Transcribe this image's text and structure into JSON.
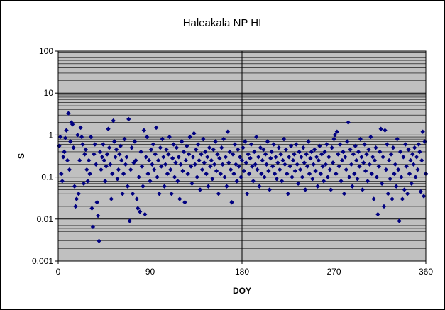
{
  "chart_data": {
    "type": "scatter",
    "title": "Haleakala NP HI",
    "xlabel": "DOY",
    "ylabel": "S",
    "xlim": [
      0,
      360
    ],
    "ylim": [
      0.001,
      100
    ],
    "y_scale": "log",
    "x_ticks": [
      "0",
      "90",
      "180",
      "270",
      "360"
    ],
    "y_ticks": [
      "0.001",
      "0.01",
      "0.1",
      "1",
      "10",
      "100"
    ],
    "grid": true,
    "legend": "none",
    "colors": {
      "marker": "#000080",
      "plot_bg": "#c0c0c0",
      "grid": "#000000"
    },
    "points": [
      [
        1,
        0.55
      ],
      [
        2,
        0.9
      ],
      [
        3,
        0.12
      ],
      [
        4,
        0.08
      ],
      [
        5,
        0.3
      ],
      [
        6,
        0.4
      ],
      [
        7,
        0.85
      ],
      [
        8,
        1.3
      ],
      [
        9,
        0.25
      ],
      [
        10,
        3.3
      ],
      [
        11,
        0.15
      ],
      [
        12,
        0.7
      ],
      [
        13,
        2.0
      ],
      [
        14,
        1.8
      ],
      [
        15,
        0.5
      ],
      [
        16,
        0.06
      ],
      [
        17,
        0.02
      ],
      [
        18,
        0.03
      ],
      [
        19,
        1.0
      ],
      [
        20,
        0.04
      ],
      [
        21,
        0.25
      ],
      [
        22,
        1.5
      ],
      [
        23,
        0.9
      ],
      [
        24,
        0.6
      ],
      [
        25,
        0.07
      ],
      [
        26,
        0.35
      ],
      [
        27,
        0.45
      ],
      [
        28,
        0.15
      ],
      [
        29,
        0.08
      ],
      [
        30,
        0.25
      ],
      [
        31,
        0.12
      ],
      [
        32,
        0.9
      ],
      [
        33,
        0.018
      ],
      [
        34,
        0.0065
      ],
      [
        35,
        0.35
      ],
      [
        36,
        0.6
      ],
      [
        37,
        0.2
      ],
      [
        38,
        0.025
      ],
      [
        39,
        0.012
      ],
      [
        40,
        0.003
      ],
      [
        41,
        0.4
      ],
      [
        42,
        0.15
      ],
      [
        43,
        0.3
      ],
      [
        44,
        0.6
      ],
      [
        45,
        0.25
      ],
      [
        46,
        0.08
      ],
      [
        47,
        0.18
      ],
      [
        48,
        0.35
      ],
      [
        49,
        1.4
      ],
      [
        50,
        0.5
      ],
      [
        51,
        0.2
      ],
      [
        52,
        0.03
      ],
      [
        53,
        0.12
      ],
      [
        54,
        2.2
      ],
      [
        55,
        0.7
      ],
      [
        56,
        0.3
      ],
      [
        57,
        0.45
      ],
      [
        58,
        0.09
      ],
      [
        59,
        0.15
      ],
      [
        60,
        0.35
      ],
      [
        61,
        0.55
      ],
      [
        62,
        0.25
      ],
      [
        63,
        0.04
      ],
      [
        64,
        0.12
      ],
      [
        65,
        0.8
      ],
      [
        66,
        0.2
      ],
      [
        67,
        0.3
      ],
      [
        68,
        0.06
      ],
      [
        69,
        2.4
      ],
      [
        70,
        0.009
      ],
      [
        71,
        0.15
      ],
      [
        72,
        0.5
      ],
      [
        73,
        0.04
      ],
      [
        74,
        0.22
      ],
      [
        75,
        0.7
      ],
      [
        76,
        0.25
      ],
      [
        77,
        0.03
      ],
      [
        78,
        0.018
      ],
      [
        79,
        0.1
      ],
      [
        80,
        0.015
      ],
      [
        81,
        0.4
      ],
      [
        82,
        0.18
      ],
      [
        83,
        0.06
      ],
      [
        84,
        1.3
      ],
      [
        85,
        0.013
      ],
      [
        86,
        0.3
      ],
      [
        87,
        0.9
      ],
      [
        88,
        0.12
      ],
      [
        89,
        0.25
      ],
      [
        90,
        0.08
      ],
      [
        91,
        0.45
      ],
      [
        92,
        0.2
      ],
      [
        93,
        0.6
      ],
      [
        94,
        0.15
      ],
      [
        95,
        0.35
      ],
      [
        96,
        1.5
      ],
      [
        97,
        0.1
      ],
      [
        98,
        0.25
      ],
      [
        99,
        0.04
      ],
      [
        100,
        0.5
      ],
      [
        101,
        0.18
      ],
      [
        102,
        0.8
      ],
      [
        103,
        0.3
      ],
      [
        104,
        0.06
      ],
      [
        105,
        0.2
      ],
      [
        106,
        0.45
      ],
      [
        107,
        0.12
      ],
      [
        108,
        0.35
      ],
      [
        109,
        0.9
      ],
      [
        110,
        0.15
      ],
      [
        111,
        0.04
      ],
      [
        112,
        0.28
      ],
      [
        113,
        0.6
      ],
      [
        114,
        0.1
      ],
      [
        115,
        0.22
      ],
      [
        116,
        0.5
      ],
      [
        117,
        0.08
      ],
      [
        118,
        0.3
      ],
      [
        119,
        0.03
      ],
      [
        120,
        0.2
      ],
      [
        121,
        0.7
      ],
      [
        122,
        0.14
      ],
      [
        123,
        0.4
      ],
      [
        124,
        0.025
      ],
      [
        125,
        0.25
      ],
      [
        126,
        0.55
      ],
      [
        127,
        0.12
      ],
      [
        128,
        0.35
      ],
      [
        129,
        0.9
      ],
      [
        130,
        0.18
      ],
      [
        131,
        0.07
      ],
      [
        132,
        0.3
      ],
      [
        133,
        1.1
      ],
      [
        134,
        0.2
      ],
      [
        135,
        0.45
      ],
      [
        136,
        0.1
      ],
      [
        137,
        0.6
      ],
      [
        138,
        0.25
      ],
      [
        139,
        0.05
      ],
      [
        140,
        0.35
      ],
      [
        141,
        0.15
      ],
      [
        142,
        0.8
      ],
      [
        143,
        0.22
      ],
      [
        144,
        0.4
      ],
      [
        145,
        0.12
      ],
      [
        146,
        0.3
      ],
      [
        147,
        0.06
      ],
      [
        148,
        0.5
      ],
      [
        149,
        0.18
      ],
      [
        150,
        0.25
      ],
      [
        151,
        0.09
      ],
      [
        152,
        0.45
      ],
      [
        153,
        0.2
      ],
      [
        154,
        0.7
      ],
      [
        155,
        0.14
      ],
      [
        156,
        0.35
      ],
      [
        157,
        0.04
      ],
      [
        158,
        0.28
      ],
      [
        159,
        0.12
      ],
      [
        160,
        0.5
      ],
      [
        161,
        0.2
      ],
      [
        162,
        0.8
      ],
      [
        163,
        0.1
      ],
      [
        164,
        0.3
      ],
      [
        165,
        0.06
      ],
      [
        166,
        1.2
      ],
      [
        167,
        0.22
      ],
      [
        168,
        0.4
      ],
      [
        169,
        0.15
      ],
      [
        170,
        0.025
      ],
      [
        171,
        0.35
      ],
      [
        172,
        0.12
      ],
      [
        173,
        0.6
      ],
      [
        174,
        0.2
      ],
      [
        175,
        0.08
      ],
      [
        176,
        0.45
      ],
      [
        177,
        0.18
      ],
      [
        178,
        0.3
      ],
      [
        179,
        0.1
      ],
      [
        180,
        0.25
      ],
      [
        181,
        0.5
      ],
      [
        182,
        0.14
      ],
      [
        183,
        0.7
      ],
      [
        184,
        0.22
      ],
      [
        185,
        0.04
      ],
      [
        186,
        0.35
      ],
      [
        187,
        0.12
      ],
      [
        188,
        0.28
      ],
      [
        189,
        0.6
      ],
      [
        190,
        0.18
      ],
      [
        191,
        0.08
      ],
      [
        192,
        0.4
      ],
      [
        193,
        0.2
      ],
      [
        194,
        0.9
      ],
      [
        195,
        0.15
      ],
      [
        196,
        0.3
      ],
      [
        197,
        0.06
      ],
      [
        198,
        0.5
      ],
      [
        199,
        0.12
      ],
      [
        200,
        0.25
      ],
      [
        201,
        0.45
      ],
      [
        202,
        0.1
      ],
      [
        203,
        0.35
      ],
      [
        204,
        0.2
      ],
      [
        205,
        0.7
      ],
      [
        206,
        0.14
      ],
      [
        207,
        0.05
      ],
      [
        208,
        0.28
      ],
      [
        209,
        0.4
      ],
      [
        210,
        0.18
      ],
      [
        211,
        0.6
      ],
      [
        212,
        0.12
      ],
      [
        213,
        0.3
      ],
      [
        214,
        0.09
      ],
      [
        215,
        0.22
      ],
      [
        216,
        0.5
      ],
      [
        217,
        0.15
      ],
      [
        218,
        0.35
      ],
      [
        219,
        0.08
      ],
      [
        220,
        0.25
      ],
      [
        221,
        0.8
      ],
      [
        222,
        0.2
      ],
      [
        223,
        0.45
      ],
      [
        224,
        0.12
      ],
      [
        225,
        0.04
      ],
      [
        226,
        0.3
      ],
      [
        227,
        0.18
      ],
      [
        228,
        0.55
      ],
      [
        229,
        0.1
      ],
      [
        230,
        0.25
      ],
      [
        231,
        0.35
      ],
      [
        232,
        0.14
      ],
      [
        233,
        0.6
      ],
      [
        234,
        0.2
      ],
      [
        235,
        0.07
      ],
      [
        236,
        0.4
      ],
      [
        237,
        0.15
      ],
      [
        238,
        0.3
      ],
      [
        239,
        0.1
      ],
      [
        240,
        0.5
      ],
      [
        241,
        0.22
      ],
      [
        242,
        0.05
      ],
      [
        243,
        0.35
      ],
      [
        244,
        0.18
      ],
      [
        245,
        0.7
      ],
      [
        246,
        0.12
      ],
      [
        247,
        0.28
      ],
      [
        248,
        0.4
      ],
      [
        249,
        0.09
      ],
      [
        250,
        0.2
      ],
      [
        251,
        0.45
      ],
      [
        252,
        0.14
      ],
      [
        253,
        0.3
      ],
      [
        254,
        0.06
      ],
      [
        255,
        0.25
      ],
      [
        256,
        0.55
      ],
      [
        257,
        0.12
      ],
      [
        258,
        0.35
      ],
      [
        259,
        0.18
      ],
      [
        260,
        0.08
      ],
      [
        261,
        0.4
      ],
      [
        262,
        0.2
      ],
      [
        263,
        0.6
      ],
      [
        264,
        0.1
      ],
      [
        265,
        0.3
      ],
      [
        266,
        0.15
      ],
      [
        267,
        0.05
      ],
      [
        268,
        0.5
      ],
      [
        269,
        0.22
      ],
      [
        270,
        0.8
      ],
      [
        271,
        1.0
      ],
      [
        272,
        0.12
      ],
      [
        273,
        1.2
      ],
      [
        274,
        0.35
      ],
      [
        275,
        0.18
      ],
      [
        276,
        0.6
      ],
      [
        277,
        0.08
      ],
      [
        278,
        0.25
      ],
      [
        279,
        0.4
      ],
      [
        280,
        0.04
      ],
      [
        281,
        0.3
      ],
      [
        282,
        0.15
      ],
      [
        283,
        0.7
      ],
      [
        284,
        2.0
      ],
      [
        285,
        0.1
      ],
      [
        286,
        0.45
      ],
      [
        287,
        0.2
      ],
      [
        288,
        0.06
      ],
      [
        289,
        0.35
      ],
      [
        290,
        0.12
      ],
      [
        291,
        0.55
      ],
      [
        292,
        0.25
      ],
      [
        293,
        0.09
      ],
      [
        294,
        0.4
      ],
      [
        295,
        0.18
      ],
      [
        296,
        0.8
      ],
      [
        297,
        0.3
      ],
      [
        298,
        0.05
      ],
      [
        299,
        0.22
      ],
      [
        300,
        0.6
      ],
      [
        301,
        0.14
      ],
      [
        302,
        0.35
      ],
      [
        303,
        0.08
      ],
      [
        304,
        0.45
      ],
      [
        305,
        0.2
      ],
      [
        306,
        0.9
      ],
      [
        307,
        0.12
      ],
      [
        308,
        0.3
      ],
      [
        309,
        0.03
      ],
      [
        310,
        0.25
      ],
      [
        311,
        0.5
      ],
      [
        312,
        0.1
      ],
      [
        313,
        0.013
      ],
      [
        314,
        0.18
      ],
      [
        315,
        0.4
      ],
      [
        316,
        1.4
      ],
      [
        317,
        0.07
      ],
      [
        318,
        0.3
      ],
      [
        319,
        0.02
      ],
      [
        320,
        1.3
      ],
      [
        321,
        0.15
      ],
      [
        322,
        0.6
      ],
      [
        323,
        0.04
      ],
      [
        324,
        0.25
      ],
      [
        325,
        0.09
      ],
      [
        326,
        0.35
      ],
      [
        327,
        0.03
      ],
      [
        328,
        0.5
      ],
      [
        329,
        0.12
      ],
      [
        330,
        0.2
      ],
      [
        331,
        0.06
      ],
      [
        332,
        0.8
      ],
      [
        333,
        0.15
      ],
      [
        334,
        0.009
      ],
      [
        335,
        0.4
      ],
      [
        336,
        0.1
      ],
      [
        337,
        0.03
      ],
      [
        338,
        0.3
      ],
      [
        339,
        0.05
      ],
      [
        340,
        0.6
      ],
      [
        341,
        0.18
      ],
      [
        342,
        0.04
      ],
      [
        343,
        0.45
      ],
      [
        344,
        0.12
      ],
      [
        345,
        0.25
      ],
      [
        346,
        0.07
      ],
      [
        347,
        0.35
      ],
      [
        348,
        0.2
      ],
      [
        349,
        0.5
      ],
      [
        350,
        0.1
      ],
      [
        351,
        0.3
      ],
      [
        352,
        0.15
      ],
      [
        353,
        0.6
      ],
      [
        354,
        0.4
      ],
      [
        355,
        0.045
      ],
      [
        356,
        0.25
      ],
      [
        357,
        1.2
      ],
      [
        358,
        0.035
      ],
      [
        359,
        0.7
      ],
      [
        360,
        0.12
      ]
    ]
  }
}
